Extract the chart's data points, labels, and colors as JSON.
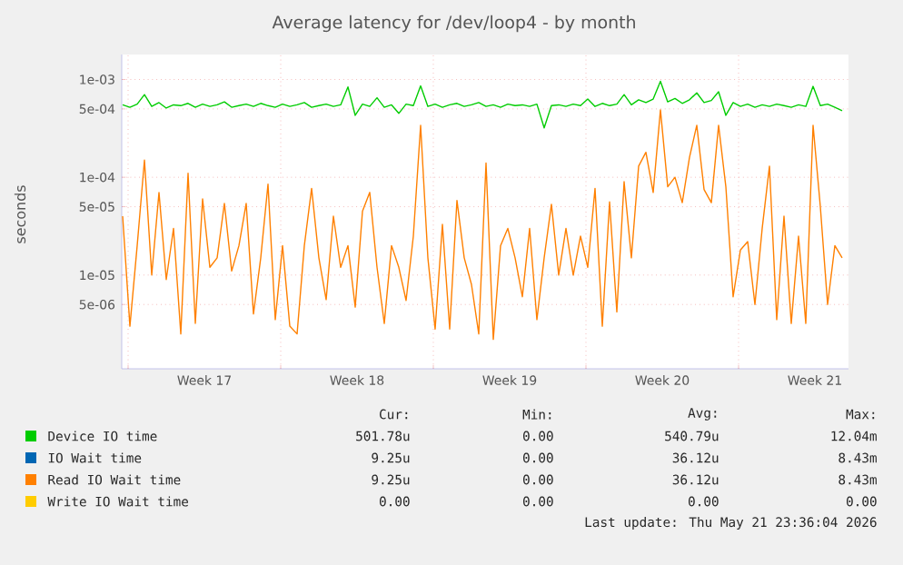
{
  "chart_data": {
    "type": "line",
    "title": "Average latency for /dev/loop4 - by month",
    "ylabel": "seconds",
    "log": true,
    "grid": true,
    "legend": "bottom",
    "marker": "none",
    "line_style": "solid",
    "xlim": [
      "2026-04-18T17:00",
      "2026-05-22T01:00"
    ],
    "ylim": [
      1.1e-06,
      0.0018
    ],
    "xticks": [
      {
        "value": "2026-04-19T00:00",
        "label": null
      },
      {
        "value": "2026-04-26T00:00",
        "label": null
      },
      {
        "value": "2026-05-03T00:00",
        "label": null
      },
      {
        "value": "2026-05-10T00:00",
        "label": null
      },
      {
        "value": "2026-05-17T00:00",
        "label": null
      },
      {
        "value": "2026-04-22T12:00",
        "label": "Week 17"
      },
      {
        "value": "2026-04-29T12:00",
        "label": "Week 18"
      },
      {
        "value": "2026-05-06T12:00",
        "label": "Week 19"
      },
      {
        "value": "2026-05-13T12:00",
        "label": "Week 20"
      },
      {
        "value": "2026-05-20T12:00",
        "label": "Week 21"
      }
    ],
    "yticks": [
      {
        "value": 0.001,
        "label": "1e-03"
      },
      {
        "value": 0.0005,
        "label": "5e-04"
      },
      {
        "value": 0.0001,
        "label": "1e-04"
      },
      {
        "value": 5e-05,
        "label": "5e-05"
      },
      {
        "value": 1e-05,
        "label": "1e-05"
      },
      {
        "value": 5e-06,
        "label": "5e-06"
      }
    ],
    "x": [
      "2026-04-18T18:00",
      "2026-04-19T02:00",
      "2026-04-19T10:00",
      "2026-04-19T18:00",
      "2026-04-20T02:00",
      "2026-04-20T10:00",
      "2026-04-20T18:00",
      "2026-04-21T02:00",
      "2026-04-21T10:00",
      "2026-04-21T18:00",
      "2026-04-22T02:00",
      "2026-04-22T10:00",
      "2026-04-22T18:00",
      "2026-04-23T02:00",
      "2026-04-23T10:00",
      "2026-04-23T18:00",
      "2026-04-24T02:00",
      "2026-04-24T10:00",
      "2026-04-24T18:00",
      "2026-04-25T02:00",
      "2026-04-25T10:00",
      "2026-04-25T18:00",
      "2026-04-26T02:00",
      "2026-04-26T10:00",
      "2026-04-26T18:00",
      "2026-04-27T02:00",
      "2026-04-27T10:00",
      "2026-04-27T18:00",
      "2026-04-28T02:00",
      "2026-04-28T10:00",
      "2026-04-28T18:00",
      "2026-04-29T02:00",
      "2026-04-29T10:00",
      "2026-04-29T18:00",
      "2026-04-30T02:00",
      "2026-04-30T10:00",
      "2026-04-30T18:00",
      "2026-05-01T02:00",
      "2026-05-01T10:00",
      "2026-05-01T18:00",
      "2026-05-02T02:00",
      "2026-05-02T10:00",
      "2026-05-02T18:00",
      "2026-05-03T02:00",
      "2026-05-03T10:00",
      "2026-05-03T18:00",
      "2026-05-04T02:00",
      "2026-05-04T10:00",
      "2026-05-04T18:00",
      "2026-05-05T02:00",
      "2026-05-05T10:00",
      "2026-05-05T18:00",
      "2026-05-06T02:00",
      "2026-05-06T10:00",
      "2026-05-06T18:00",
      "2026-05-07T02:00",
      "2026-05-07T10:00",
      "2026-05-07T18:00",
      "2026-05-08T02:00",
      "2026-05-08T10:00",
      "2026-05-08T18:00",
      "2026-05-09T02:00",
      "2026-05-09T10:00",
      "2026-05-09T18:00",
      "2026-05-10T02:00",
      "2026-05-10T10:00",
      "2026-05-10T18:00",
      "2026-05-11T02:00",
      "2026-05-11T10:00",
      "2026-05-11T18:00",
      "2026-05-12T02:00",
      "2026-05-12T10:00",
      "2026-05-12T18:00",
      "2026-05-13T02:00",
      "2026-05-13T10:00",
      "2026-05-13T18:00",
      "2026-05-14T02:00",
      "2026-05-14T10:00",
      "2026-05-14T18:00",
      "2026-05-15T02:00",
      "2026-05-15T10:00",
      "2026-05-15T18:00",
      "2026-05-16T02:00",
      "2026-05-16T10:00",
      "2026-05-16T18:00",
      "2026-05-17T02:00",
      "2026-05-17T10:00",
      "2026-05-17T18:00",
      "2026-05-18T02:00",
      "2026-05-18T10:00",
      "2026-05-18T18:00",
      "2026-05-19T02:00",
      "2026-05-19T10:00",
      "2026-05-19T18:00",
      "2026-05-20T02:00",
      "2026-05-20T10:00",
      "2026-05-20T18:00",
      "2026-05-21T02:00",
      "2026-05-21T10:00",
      "2026-05-21T18:00"
    ],
    "series": [
      {
        "name": "Device IO time",
        "color": "#00cc00",
        "values": [
          0.00055,
          0.00052,
          0.00056,
          0.0007,
          0.00053,
          0.00058,
          0.00051,
          0.00055,
          0.00054,
          0.00057,
          0.00052,
          0.00056,
          0.00053,
          0.00055,
          0.00059,
          0.00052,
          0.00054,
          0.00056,
          0.00053,
          0.00057,
          0.00054,
          0.00052,
          0.00056,
          0.00053,
          0.00055,
          0.00058,
          0.00052,
          0.00054,
          0.00056,
          0.00053,
          0.00055,
          0.00084,
          0.00043,
          0.00056,
          0.00053,
          0.00065,
          0.00052,
          0.00055,
          0.00045,
          0.00056,
          0.00054,
          0.00086,
          0.00053,
          0.00056,
          0.00052,
          0.00055,
          0.00057,
          0.00053,
          0.00055,
          0.00058,
          0.00053,
          0.00055,
          0.00052,
          0.00056,
          0.00054,
          0.00055,
          0.00053,
          0.00056,
          0.00032,
          0.00054,
          0.00055,
          0.00053,
          0.00056,
          0.00054,
          0.00063,
          0.00053,
          0.00057,
          0.00054,
          0.00056,
          0.0007,
          0.00055,
          0.00062,
          0.00058,
          0.00063,
          0.00096,
          0.00059,
          0.00064,
          0.00057,
          0.00062,
          0.00073,
          0.00058,
          0.00061,
          0.00075,
          0.00043,
          0.00058,
          0.00053,
          0.00056,
          0.00052,
          0.00055,
          0.00053,
          0.00056,
          0.00054,
          0.00052,
          0.00055,
          0.00053,
          0.00085,
          0.00054,
          0.00056,
          0.00052,
          0.00048
        ]
      },
      {
        "name": "IO Wait time",
        "color": "#0066b3",
        "values": [
          null,
          null,
          null,
          null,
          null,
          null,
          null,
          null,
          null,
          null,
          null,
          null,
          null,
          null,
          null,
          null,
          null,
          null,
          null,
          null,
          null,
          null,
          null,
          null,
          null,
          null,
          null,
          null,
          null,
          null,
          null,
          null,
          null,
          null,
          null,
          null,
          null,
          null,
          null,
          null,
          null,
          null,
          null,
          null,
          null,
          null,
          null,
          null,
          null,
          null,
          null,
          null,
          null,
          null,
          null,
          null,
          null,
          null,
          null,
          null,
          null,
          null,
          null,
          null,
          null,
          null,
          null,
          null,
          null,
          null,
          null,
          null,
          null,
          null,
          null,
          null,
          null,
          null,
          null,
          null,
          null,
          null,
          null,
          null,
          null,
          null,
          null,
          null,
          null,
          null,
          null,
          null,
          null,
          null,
          null,
          null,
          null,
          null,
          null,
          null
        ]
      },
      {
        "name": "Read IO Wait time",
        "color": "#ff8000",
        "values": [
          4e-05,
          3e-06,
          2e-05,
          0.00015,
          1e-05,
          7e-05,
          9e-06,
          3e-05,
          2.5e-06,
          0.00011,
          3.2e-06,
          6e-05,
          1.2e-05,
          1.5e-05,
          5.4e-05,
          1.1e-05,
          2e-05,
          5.4e-05,
          4e-06,
          1.5e-05,
          8.5e-05,
          3.5e-06,
          2e-05,
          3e-06,
          2.5e-06,
          2e-05,
          7.7e-05,
          1.5e-05,
          5.6e-06,
          4e-05,
          1.2e-05,
          2e-05,
          4.7e-06,
          4.5e-05,
          7e-05,
          1.2e-05,
          3.2e-06,
          2e-05,
          1.2e-05,
          5.5e-06,
          2.5e-05,
          0.00034,
          1.5e-05,
          2.8e-06,
          3.3e-05,
          2.8e-06,
          5.8e-05,
          1.5e-05,
          8e-06,
          2.5e-06,
          0.00014,
          2.2e-06,
          2e-05,
          3e-05,
          1.5e-05,
          6e-06,
          3e-05,
          3.5e-06,
          1.5e-05,
          5.3e-05,
          1e-05,
          3e-05,
          1e-05,
          2.5e-05,
          1.2e-05,
          7.7e-05,
          3e-06,
          5.6e-05,
          4.2e-06,
          9e-05,
          1.5e-05,
          0.00013,
          0.00018,
          7e-05,
          0.00049,
          8e-05,
          0.0001,
          5.5e-05,
          0.00016,
          0.00034,
          7.5e-05,
          5.5e-05,
          0.00034,
          8e-05,
          6e-06,
          1.8e-05,
          2.2e-05,
          5e-06,
          3e-05,
          0.00013,
          3.5e-06,
          4e-05,
          3.2e-06,
          2.5e-05,
          3.2e-06,
          0.00034,
          5e-05,
          5e-06,
          2e-05,
          1.5e-05
        ]
      },
      {
        "name": "Write IO Wait time",
        "color": "#ffcc00",
        "values": [
          null,
          null,
          null,
          null,
          null,
          null,
          null,
          null,
          null,
          null,
          null,
          null,
          null,
          null,
          null,
          null,
          null,
          null,
          null,
          null,
          null,
          null,
          null,
          null,
          null,
          null,
          null,
          null,
          null,
          null,
          null,
          null,
          null,
          null,
          null,
          null,
          null,
          null,
          null,
          null,
          null,
          null,
          null,
          null,
          null,
          null,
          null,
          null,
          null,
          null,
          null,
          null,
          null,
          null,
          null,
          null,
          null,
          null,
          null,
          null,
          null,
          null,
          null,
          null,
          null,
          null,
          null,
          null,
          null,
          null,
          null,
          null,
          null,
          null,
          null,
          null,
          null,
          null,
          null,
          null,
          null,
          null,
          null,
          null,
          null,
          null,
          null,
          null,
          null,
          null,
          null,
          null,
          null,
          null,
          null,
          null,
          null,
          null,
          null,
          null
        ]
      }
    ],
    "annotations": [
      "Cur:",
      "Min:",
      "Avg:",
      "Max:",
      "501.78u",
      "0.00",
      "540.79u",
      "12.04m",
      "9.25u",
      "0.00",
      "36.12u",
      "8.43m",
      "9.25u",
      "0.00",
      "36.12u",
      "8.43m",
      "0.00",
      "0.00",
      "0.00",
      "0.00",
      "Last update: Thu May 21 23:36:04 2026"
    ]
  }
}
